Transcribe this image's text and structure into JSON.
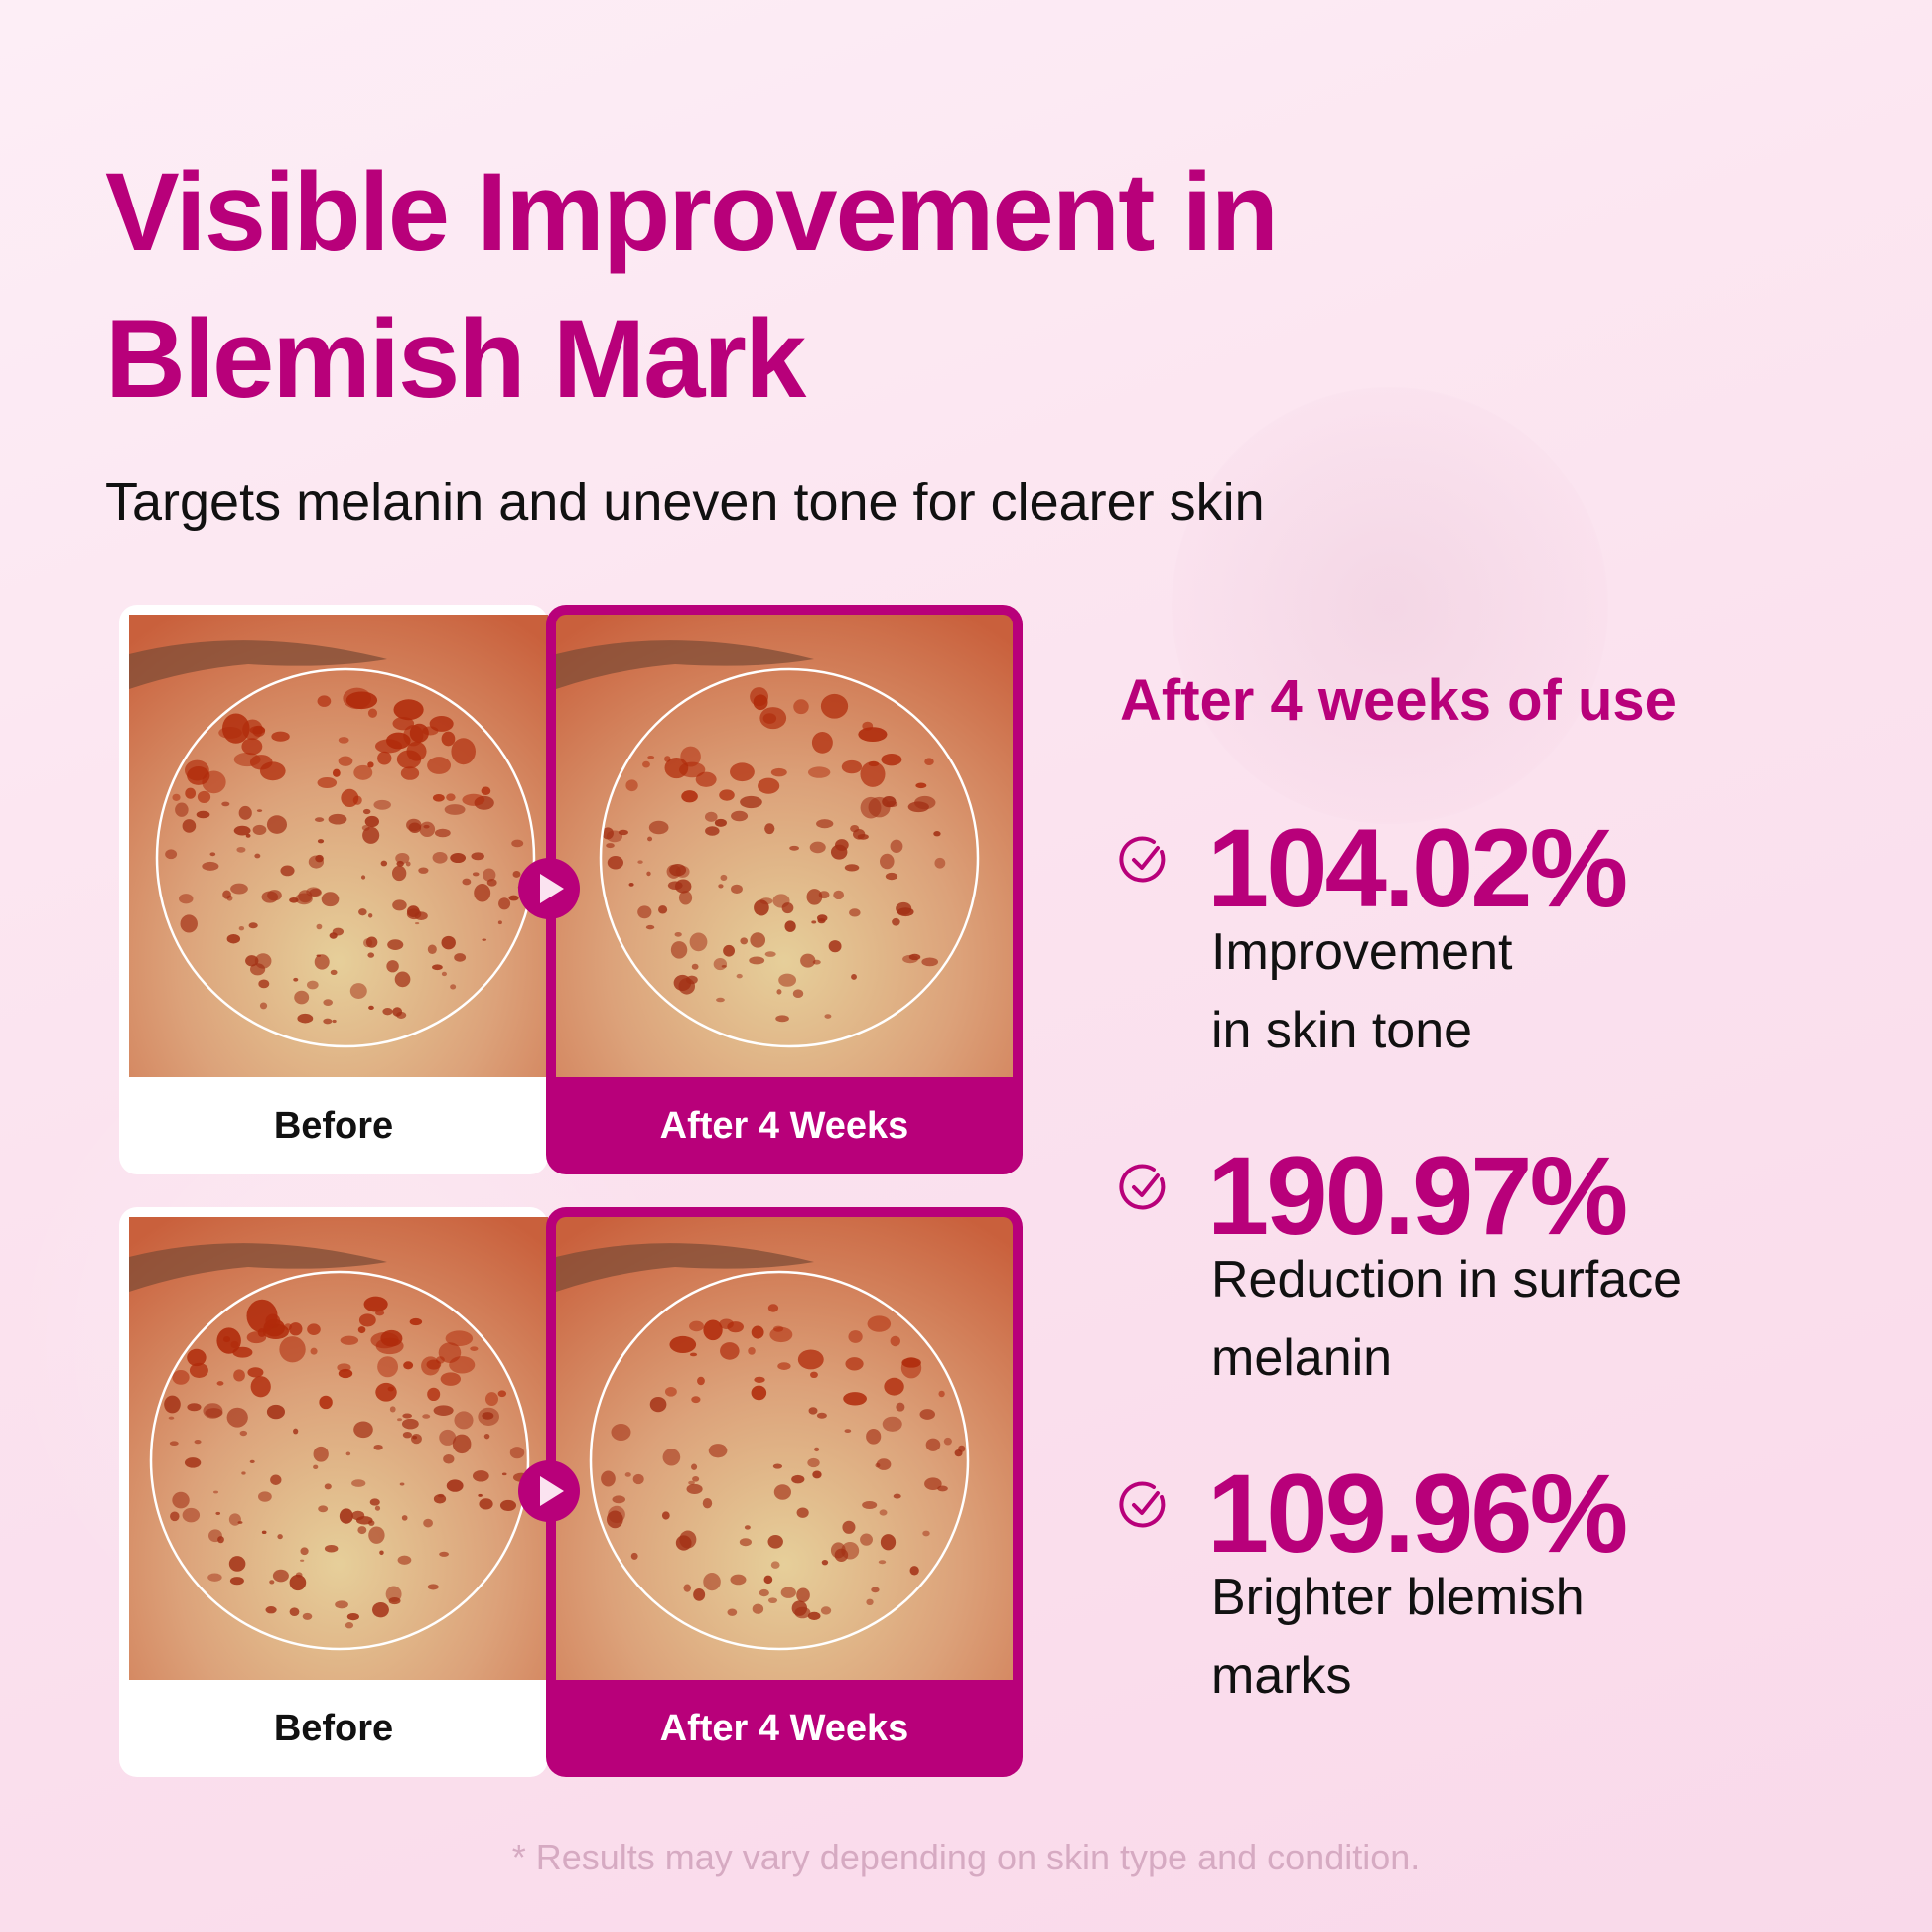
{
  "title_line1": "Visible Improvement in",
  "title_line2": "Blemish Mark",
  "subtitle": "Targets melanin and uneven tone for clearer skin",
  "comparisons": [
    {
      "before_label": "Before",
      "after_label": "After 4 Weeks"
    },
    {
      "before_label": "Before",
      "after_label": "After 4 Weeks"
    }
  ],
  "results": {
    "heading": "After 4 weeks of use",
    "items": [
      {
        "value": "104.02%",
        "line1": "Improvement",
        "line2": "in skin tone",
        "icon": "check-circle-icon"
      },
      {
        "value": "190.97%",
        "line1": "Reduction in surface",
        "line2": "melanin",
        "icon": "check-circle-icon"
      },
      {
        "value": "109.96%",
        "line1": "Brighter blemish",
        "line2": "marks",
        "icon": "check-circle-icon"
      }
    ]
  },
  "footer": "* Results may vary depending on skin type and condition.",
  "colors": {
    "accent": "#b8007a",
    "background": "#fbe3ef"
  }
}
